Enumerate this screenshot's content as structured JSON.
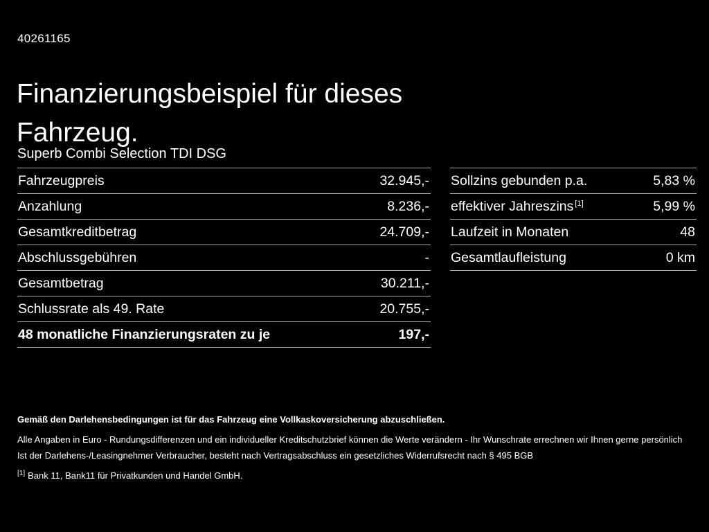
{
  "header": {
    "vehicle_id": "40261165",
    "title_line1": "Finanzierungsbeispiel für dieses",
    "title_line2": "Fahrzeug.",
    "subtitle": "Superb Combi Selection TDI DSG"
  },
  "finance_table": {
    "rows": [
      {
        "label": "Fahrzeugpreis",
        "value": "32.945,-"
      },
      {
        "label": "Anzahlung",
        "value": "8.236,-"
      },
      {
        "label": "Gesamtkreditbetrag",
        "value": "24.709,-"
      },
      {
        "label": "Abschlussgebühren",
        "value": "-"
      },
      {
        "label": "Gesamtbetrag",
        "value": "30.211,-"
      },
      {
        "label": "Schlussrate als 49. Rate",
        "value": "20.755,-"
      },
      {
        "label": "48 monatliche Finanzierungsraten zu je",
        "value": "197,-"
      }
    ]
  },
  "conditions_table": {
    "rows": [
      {
        "label": "Sollzins gebunden p.a.",
        "sup": "",
        "value": "5,83 %"
      },
      {
        "label": "effektiver Jahreszins",
        "sup": "[1]",
        "value": "5,99 %"
      },
      {
        "label": "Laufzeit in Monaten",
        "sup": "",
        "value": "48"
      },
      {
        "label": "Gesamtlaufleistung",
        "sup": "",
        "value": "0 km"
      }
    ]
  },
  "footer": {
    "insurance_note": "Gemäß den Darlehensbedingungen ist für das Fahrzeug eine Vollkaskoversicherung abzuschließen.",
    "disclaimer_line1": "Alle Angaben in Euro - Rundungsdifferenzen und ein individueller Kreditschutzbrief können die Werte verändern - Ihr Wunschrate errechnen wir Ihnen gerne persönlich",
    "disclaimer_line2": "Ist der Darlehens-/Leasingnehmer Verbraucher, besteht nach Vertragsabschluss ein gesetzliches Widerrufsrecht nach § 495 BGB",
    "footnote_marker": "[1]",
    "footnote_text": "Bank 11, Bank11 für Privatkunden und Handel GmbH."
  },
  "colors": {
    "background": "#000000",
    "text": "#ffffff",
    "divider": "#a8a8a8"
  }
}
